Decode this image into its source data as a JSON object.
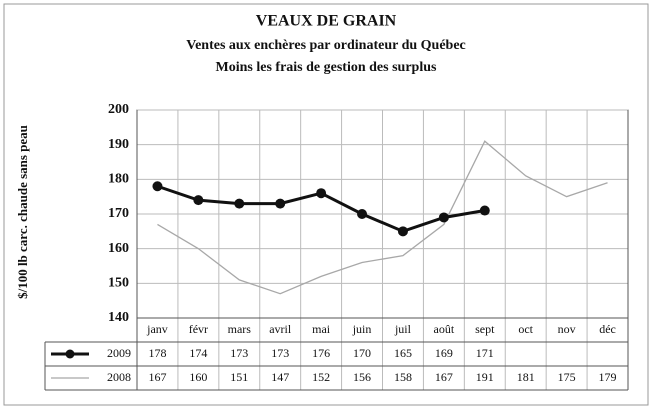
{
  "chart_data": {
    "type": "line",
    "title": "VEAUX DE GRAIN",
    "subtitle": [
      "Ventes aux enchères par ordinateur du Québec",
      "Moins les frais de gestion des surplus"
    ],
    "y_label": "$/100 lb carc. chaude sans peau",
    "categories": [
      "janv",
      "févr",
      "mars",
      "avril",
      "mai",
      "juin",
      "juil",
      "août",
      "sept",
      "oct",
      "nov",
      "déc"
    ],
    "series": [
      {
        "name": "2009",
        "color": "#111111",
        "marker": true,
        "values": [
          178,
          174,
          173,
          173,
          176,
          170,
          165,
          169,
          171,
          null,
          null,
          null
        ]
      },
      {
        "name": "2008",
        "color": "#a8a8a8",
        "marker": false,
        "values": [
          167,
          160,
          151,
          147,
          152,
          156,
          158,
          167,
          191,
          181,
          175,
          179
        ]
      }
    ],
    "ylim": [
      140,
      200
    ],
    "yticks": [
      140,
      150,
      160,
      170,
      180,
      190,
      200
    ],
    "grid": true
  }
}
